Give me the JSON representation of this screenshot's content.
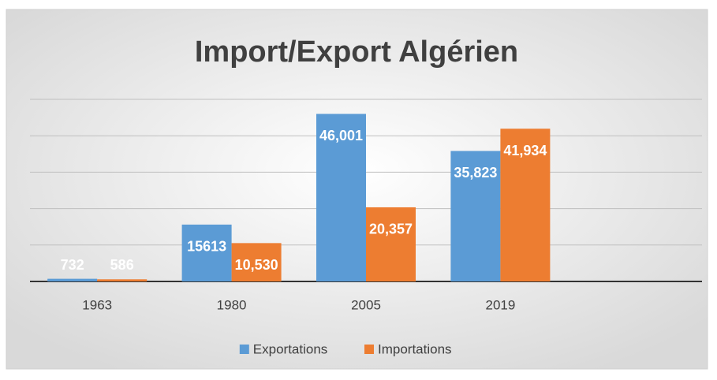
{
  "chart_data": {
    "type": "bar",
    "title": "Import/Export Algérien",
    "categories": [
      "1963",
      "1980",
      "2005",
      "2019",
      null
    ],
    "series": [
      {
        "name": "Exportations",
        "color": "#5b9bd5",
        "values": [
          732,
          15613,
          46001,
          35823,
          null
        ],
        "value_labels": [
          "732",
          "15613",
          "46,001",
          "35,823",
          null
        ]
      },
      {
        "name": "Importations",
        "color": "#ed7d31",
        "values": [
          586,
          10530,
          20357,
          41934,
          null
        ],
        "value_labels": [
          "586",
          "10,530",
          "20,357",
          "41,934",
          null
        ]
      }
    ],
    "ylim": [
      0,
      50000
    ],
    "yticks": [
      0,
      10000,
      20000,
      30000,
      40000,
      50000
    ],
    "grid": true,
    "legend": "bottom"
  }
}
